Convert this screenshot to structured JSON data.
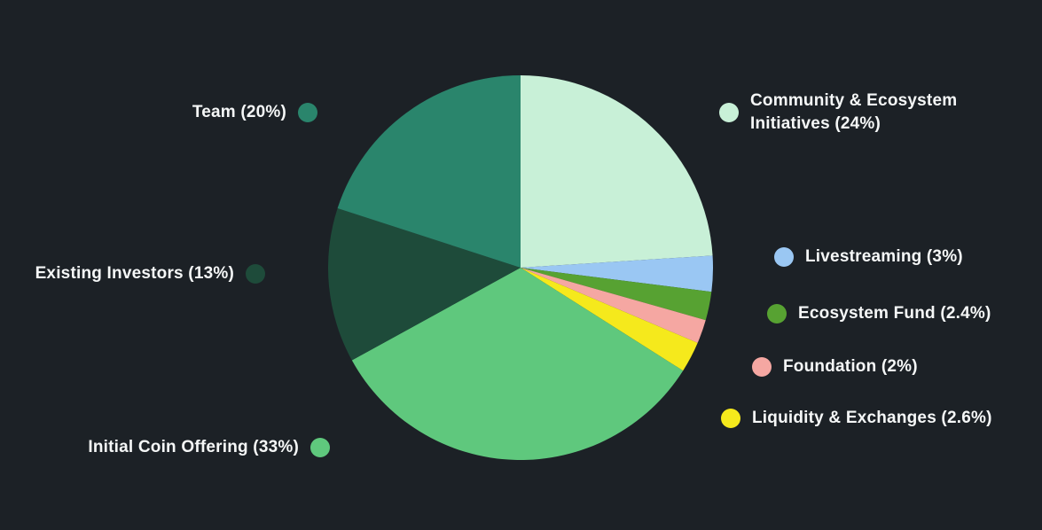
{
  "page": {
    "background_color": "#1c2126",
    "text_color": "#f5f7f7"
  },
  "chart_data": {
    "type": "pie",
    "title": "",
    "direction": "clockwise",
    "start_angle_deg": 0,
    "legend_position": "split-left-right",
    "series": [
      {
        "name": "Community & Ecosystem Initiatives",
        "label": "Community & Ecosystem Initiatives (24%)",
        "value": 24,
        "color": "#c8f0d7"
      },
      {
        "name": "Livestreaming",
        "label": "Livestreaming (3%)",
        "value": 3,
        "color": "#9ac7f3"
      },
      {
        "name": "Ecosystem Fund",
        "label": "Ecosystem Fund (2.4%)",
        "value": 2.4,
        "color": "#57a232"
      },
      {
        "name": "Foundation",
        "label": "Foundation (2%)",
        "value": 2,
        "color": "#f5a7a2"
      },
      {
        "name": "Liquidity & Exchanges",
        "label": "Liquidity & Exchanges (2.6%)",
        "value": 2.6,
        "color": "#f5e91c"
      },
      {
        "name": "Initial Coin Offering",
        "label": "Initial Coin Offering (33%)",
        "value": 33,
        "color": "#5fc87d"
      },
      {
        "name": "Existing Investors",
        "label": "Existing Investors (13%)",
        "value": 13,
        "color": "#1e4b3a"
      },
      {
        "name": "Team",
        "label": "Team (20%)",
        "value": 20,
        "color": "#2a856c"
      }
    ]
  }
}
